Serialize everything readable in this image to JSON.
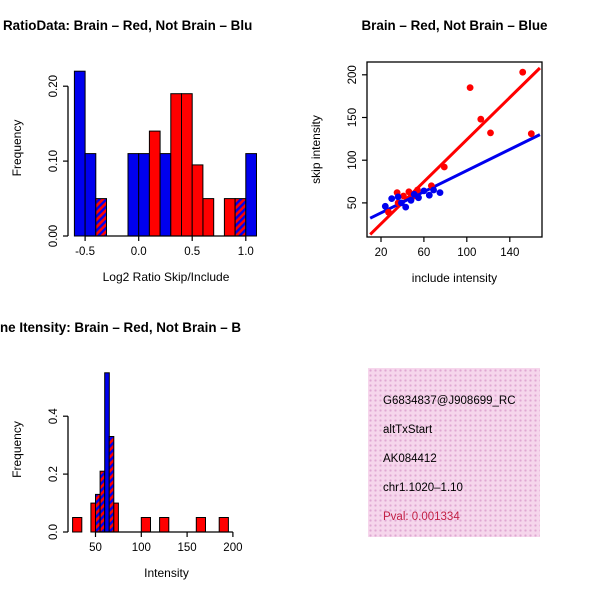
{
  "figure": {
    "bg": "#ffffff",
    "colors": {
      "red": "#ff0000",
      "blue": "#0000ee",
      "axis": "#000000"
    }
  },
  "chart_data": [
    {
      "el": "p1",
      "type": "bar",
      "title": "RatioData: Brain – Red, Not Brain – Blu",
      "title_anchor": "start",
      "title_x": 3,
      "title_y": 30,
      "xlabel": "Log2 Ratio Skip/Include",
      "ylabel": "Frequency",
      "xlim": [
        -0.66,
        1.17
      ],
      "ylim": [
        0,
        0.235
      ],
      "grid": false,
      "box": false,
      "margins": {
        "l": 68,
        "t": 60,
        "r": 36,
        "b": 64
      },
      "xticks": {
        "values": [
          -0.5,
          0,
          0.5,
          1
        ],
        "labels": [
          "-0.5",
          "0.0",
          "0.5",
          "1.0"
        ]
      },
      "yticks": {
        "values": [
          0,
          0.1,
          0.2
        ],
        "labels": [
          "0.00",
          "0.10",
          "0.20"
        ]
      },
      "bars": [
        {
          "x0": -0.6,
          "x1": -0.5,
          "h": 0.22,
          "fill": "blue"
        },
        {
          "x0": -0.5,
          "x1": -0.4,
          "h": 0.11,
          "fill": "blue"
        },
        {
          "x0": -0.4,
          "x1": -0.3,
          "h": 0.05,
          "fill": "hatch"
        },
        {
          "x0": -0.1,
          "x1": 0.0,
          "h": 0.11,
          "fill": "blue"
        },
        {
          "x0": 0.0,
          "x1": 0.1,
          "h": 0.11,
          "fill": "blue"
        },
        {
          "x0": 0.1,
          "x1": 0.2,
          "h": 0.14,
          "fill": "red"
        },
        {
          "x0": 0.2,
          "x1": 0.3,
          "h": 0.11,
          "fill": "blue"
        },
        {
          "x0": 0.3,
          "x1": 0.4,
          "h": 0.19,
          "fill": "red"
        },
        {
          "x0": 0.4,
          "x1": 0.5,
          "h": 0.19,
          "fill": "red"
        },
        {
          "x0": 0.5,
          "x1": 0.6,
          "h": 0.095,
          "fill": "red"
        },
        {
          "x0": 0.6,
          "x1": 0.7,
          "h": 0.05,
          "fill": "red"
        },
        {
          "x0": 0.8,
          "x1": 0.9,
          "h": 0.05,
          "fill": "red"
        },
        {
          "x0": 0.9,
          "x1": 1.0,
          "h": 0.05,
          "fill": "hatch"
        },
        {
          "x0": 1.0,
          "x1": 1.1,
          "h": 0.11,
          "fill": "blue"
        }
      ]
    },
    {
      "el": "p2",
      "type": "scatter",
      "title": "Brain – Red, Not Brain – Blue",
      "title_anchor": "middle",
      "title_y": 30,
      "xlabel": "include intensity",
      "ylabel": "skip intensity",
      "xlim": [
        7,
        170
      ],
      "ylim": [
        10,
        215
      ],
      "grid": false,
      "box": true,
      "margins": {
        "l": 67,
        "t": 62,
        "r": 58,
        "b": 63
      },
      "xticks": {
        "values": [
          20,
          60,
          100,
          140
        ],
        "labels": [
          "20",
          "60",
          "100",
          "140"
        ]
      },
      "yticks": {
        "values": [
          50,
          100,
          150,
          200
        ],
        "labels": [
          "50",
          "100",
          "150",
          "200"
        ]
      },
      "series": [
        {
          "name": "Brain",
          "color": "red",
          "points": [
            [
              27,
              39
            ],
            [
              36,
              50
            ],
            [
              35,
              62
            ],
            [
              41,
              58
            ],
            [
              46,
              63
            ],
            [
              51,
              58
            ],
            [
              54,
              65
            ],
            [
              67,
              70
            ],
            [
              79,
              92
            ],
            [
              103,
              185
            ],
            [
              113,
              148
            ],
            [
              122,
              132
            ],
            [
              152,
              203
            ],
            [
              160,
              131
            ]
          ]
        },
        {
          "name": "Not Brain",
          "color": "blue",
          "points": [
            [
              24,
              46
            ],
            [
              30,
              55
            ],
            [
              36,
              57
            ],
            [
              39,
              50
            ],
            [
              43,
              45
            ],
            [
              48,
              53
            ],
            [
              51,
              60
            ],
            [
              55,
              56
            ],
            [
              60,
              64
            ],
            [
              65,
              59
            ],
            [
              69,
              65
            ],
            [
              75,
              62
            ]
          ]
        }
      ],
      "lines": [
        {
          "name": "brain-fit",
          "color": "red",
          "x1": 10,
          "y1": 13,
          "x2": 168,
          "y2": 208,
          "width": 3
        },
        {
          "name": "notbrain-fit",
          "color": "blue",
          "x1": 10,
          "y1": 32,
          "x2": 168,
          "y2": 130,
          "width": 3
        }
      ]
    },
    {
      "el": "p3",
      "type": "bar",
      "title": "ne Itensity: Brain – Red, Not Brain – B",
      "title_anchor": "start",
      "title_x": 0,
      "title_y": 32,
      "xlabel": "Intensity",
      "ylabel": "Frequency",
      "xlim": [
        20,
        235
      ],
      "ylim": [
        0,
        0.57
      ],
      "grid": false,
      "box": false,
      "margins": {
        "l": 68,
        "t": 67,
        "r": 35,
        "b": 68
      },
      "xticks": {
        "values": [
          50,
          100,
          150,
          200
        ],
        "labels": [
          "50",
          "100",
          "150",
          "200"
        ]
      },
      "yticks": {
        "values": [
          0,
          0.2,
          0.4
        ],
        "labels": [
          "0.0",
          "0.2",
          "0.4"
        ]
      },
      "bars": [
        {
          "x0": 25,
          "x1": 35,
          "h": 0.05,
          "fill": "red"
        },
        {
          "x0": 45,
          "x1": 50,
          "h": 0.1,
          "fill": "red"
        },
        {
          "x0": 50,
          "x1": 55,
          "h": 0.13,
          "fill": "hatch"
        },
        {
          "x0": 55,
          "x1": 60,
          "h": 0.21,
          "fill": "hatch"
        },
        {
          "x0": 60,
          "x1": 65,
          "h": 0.55,
          "fill": "blue"
        },
        {
          "x0": 65,
          "x1": 70,
          "h": 0.33,
          "fill": "hatch"
        },
        {
          "x0": 70,
          "x1": 75,
          "h": 0.1,
          "fill": "red"
        },
        {
          "x0": 100,
          "x1": 110,
          "h": 0.05,
          "fill": "red"
        },
        {
          "x0": 120,
          "x1": 130,
          "h": 0.05,
          "fill": "red"
        },
        {
          "x0": 160,
          "x1": 170,
          "h": 0.05,
          "fill": "red"
        },
        {
          "x0": 185,
          "x1": 195,
          "h": 0.05,
          "fill": "red"
        }
      ]
    }
  ],
  "info_box": {
    "bg": "#f6d6ec",
    "dot_color": "#dfa8d2",
    "lines": [
      {
        "text": "G6834837@J908699_RC",
        "color": "#000000"
      },
      {
        "text": "altTxStart",
        "color": "#000000"
      },
      {
        "text": "AK084412",
        "color": "#000000"
      },
      {
        "text": "chr1.1020–1.10",
        "color": "#000000"
      },
      {
        "text": "Pval: 0.001334",
        "color": "#c22146"
      }
    ]
  }
}
